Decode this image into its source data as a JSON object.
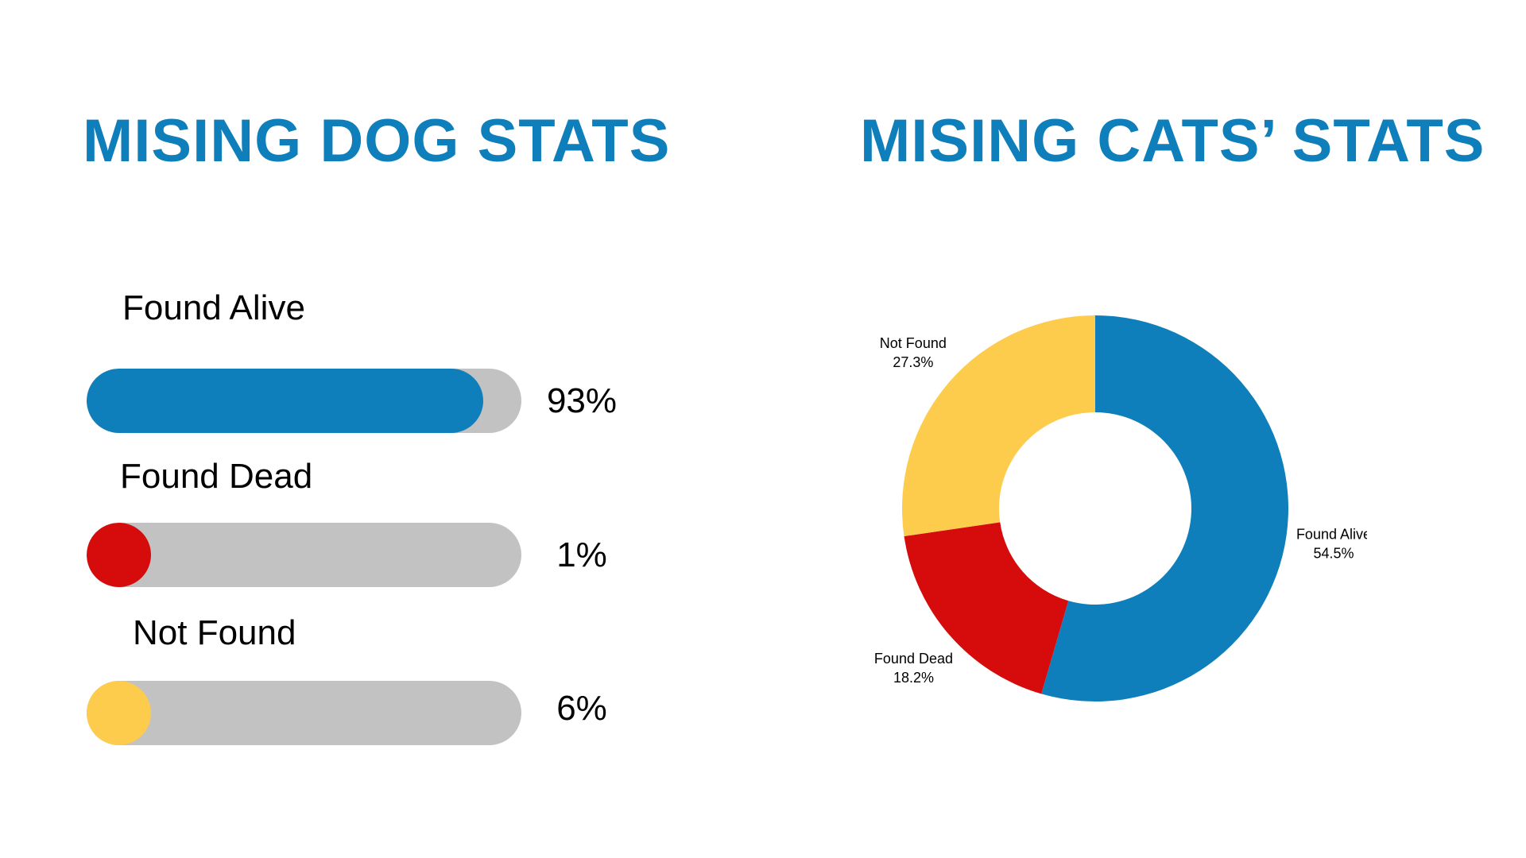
{
  "left": {
    "title": "MISING DOG STATS",
    "rows": [
      {
        "label": "Found Alive",
        "percent_text": "93%",
        "fill_fraction": 0.93,
        "color": "#0f7fbc"
      },
      {
        "label": "Found Dead",
        "percent_text": "1%",
        "fill_fraction": 0.01,
        "color": "#d60c0c"
      },
      {
        "label": "Not Found",
        "percent_text": "6%",
        "fill_fraction": 0.06,
        "color": "#fdcc4d"
      }
    ],
    "track_color": "#c2c2c2"
  },
  "right": {
    "title": "MISING CATS’ STATS"
  },
  "chart_data": [
    {
      "type": "bar",
      "title": "MISING DOG STATS",
      "orientation": "horizontal",
      "categories": [
        "Found Alive",
        "Found Dead",
        "Not Found"
      ],
      "values": [
        93,
        1,
        6
      ],
      "unit": "%",
      "colors": [
        "#0f7fbc",
        "#d60c0c",
        "#fdcc4d"
      ]
    },
    {
      "type": "pie",
      "style": "donut",
      "title": "MISING CATS’ STATS",
      "slices": [
        {
          "label": "Found Alive",
          "value": 54.5,
          "value_text": "54.5%",
          "color": "#0f7fbc"
        },
        {
          "label": "Found Dead",
          "value": 18.2,
          "value_text": "18.2%",
          "color": "#d60c0c"
        },
        {
          "label": "Not Found",
          "value": 27.3,
          "value_text": "27.3%",
          "color": "#fdcc4d"
        }
      ]
    }
  ]
}
